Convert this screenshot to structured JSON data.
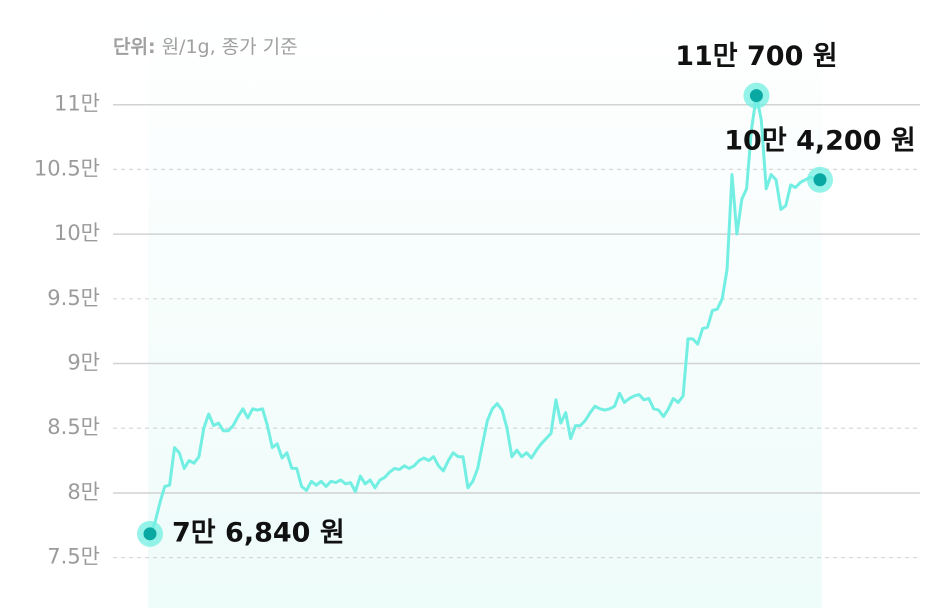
{
  "chart_data": {
    "type": "line",
    "unit_key": "단위:",
    "unit_text": "원/1g, 종가 기준",
    "color": "#72efe2",
    "marker_color": "#0aa8a2",
    "values": [
      76840,
      77700,
      79200,
      80500,
      80600,
      83500,
      83100,
      81900,
      82500,
      82300,
      82800,
      85000,
      86100,
      85200,
      85400,
      84800,
      84800,
      85200,
      85900,
      86500,
      85800,
      86500,
      86400,
      86500,
      85200,
      83500,
      83800,
      82700,
      83100,
      81900,
      81900,
      80500,
      80200,
      80900,
      80600,
      80900,
      80500,
      80900,
      80800,
      81000,
      80700,
      80800,
      80100,
      81300,
      80700,
      81000,
      80400,
      81000,
      81200,
      81600,
      81900,
      81800,
      82100,
      81900,
      82100,
      82500,
      82700,
      82500,
      82800,
      82100,
      81700,
      82500,
      83100,
      82800,
      82800,
      80400,
      80900,
      81900,
      83800,
      85600,
      86500,
      86900,
      86400,
      85000,
      82800,
      83300,
      82800,
      83100,
      82700,
      83300,
      83800,
      84200,
      84600,
      87200,
      85400,
      86200,
      84200,
      85200,
      85200,
      85600,
      86200,
      86700,
      86500,
      86400,
      86500,
      86700,
      87700,
      87000,
      87300,
      87500,
      87600,
      87200,
      87300,
      86500,
      86400,
      85900,
      86500,
      87300,
      87000,
      87500,
      91900,
      91900,
      91500,
      92700,
      92800,
      94100,
      94200,
      95000,
      97300,
      104600,
      100000,
      102700,
      103500,
      108100,
      110700,
      108800,
      103500,
      104600,
      104200,
      101900,
      102200,
      103800,
      103600,
      104000,
      104200,
      104400,
      104300,
      104200
    ],
    "value_labels": [
      "7만 6,840 원",
      null,
      null,
      null,
      null,
      null,
      null,
      null,
      null,
      null,
      null,
      null,
      null,
      null,
      null,
      null,
      null,
      null,
      null,
      null,
      null,
      null,
      null,
      null,
      null,
      null,
      null,
      null,
      null,
      null,
      null,
      null,
      null,
      null,
      null,
      null,
      null,
      null,
      null,
      null,
      null,
      null,
      null,
      null,
      null,
      null,
      null,
      null,
      null,
      null,
      null,
      null,
      null,
      null,
      null,
      null,
      null,
      null,
      null,
      null,
      null,
      null,
      null,
      null,
      null,
      null,
      null,
      null,
      null,
      null,
      null,
      null,
      null,
      null,
      null,
      null,
      null,
      null,
      null,
      null,
      null,
      null,
      null,
      null,
      null,
      null,
      null,
      null,
      null,
      null,
      null,
      null,
      null,
      null,
      null,
      null,
      null,
      null,
      null,
      null,
      null,
      null,
      null,
      null,
      null,
      null,
      null,
      null,
      null,
      null,
      null,
      null,
      null,
      null,
      null,
      null,
      null,
      null,
      null,
      null,
      null,
      null,
      null,
      null,
      "11만 700 원",
      null,
      null,
      null,
      null,
      null,
      null,
      null,
      null,
      null,
      null,
      null,
      null,
      "10만 4,200 원"
    ],
    "ylim": [
      72500,
      115000
    ],
    "yticks": [
      {
        "value": 75000,
        "label": "7.5만"
      },
      {
        "value": 80000,
        "label": "8만"
      },
      {
        "value": 85000,
        "label": "8.5만"
      },
      {
        "value": 90000,
        "label": "9만"
      },
      {
        "value": 95000,
        "label": "9.5만"
      },
      {
        "value": 100000,
        "label": "10만"
      },
      {
        "value": 105000,
        "label": "10.5만"
      },
      {
        "value": 110000,
        "label": "11만"
      }
    ],
    "grid": true
  }
}
